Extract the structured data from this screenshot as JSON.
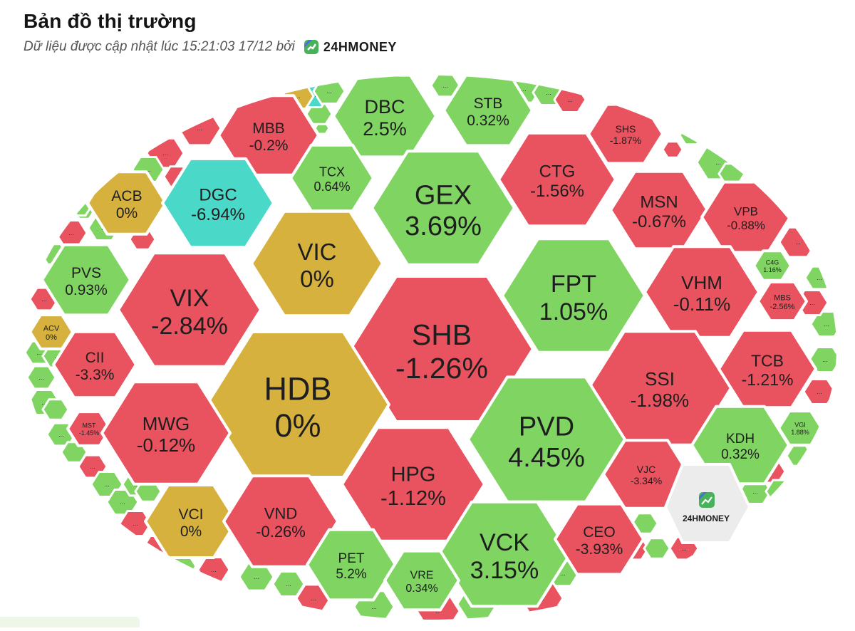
{
  "header": {
    "title": "Bản đồ thị trường",
    "subtitle": "Dữ liệu được cập nhật lúc 15:21:03 17/12 bởi",
    "brand": "24HMONEY"
  },
  "watermark": {
    "brand": "24HMONEY"
  },
  "colors": {
    "up": "#7fd462",
    "down": "#e9525f",
    "flat": "#d6b13e",
    "floor": "#4ad8c8",
    "border": "#ffffff",
    "brand_green": "#47b25a",
    "brand_blue": "#4b6fd8"
  },
  "tiles": [
    {
      "code": "MBB",
      "pct": "-0.2%"
    },
    {
      "code": "DBC",
      "pct": "2.5%"
    },
    {
      "code": "STB",
      "pct": "0.32%"
    },
    {
      "code": "SHS",
      "pct": "-1.87%"
    },
    {
      "code": "ACB",
      "pct": "0%"
    },
    {
      "code": "DGC",
      "pct": "-6.94%"
    },
    {
      "code": "TCX",
      "pct": "0.64%"
    },
    {
      "code": "GEX",
      "pct": "3.69%"
    },
    {
      "code": "CTG",
      "pct": "-1.56%"
    },
    {
      "code": "MSN",
      "pct": "-0.67%"
    },
    {
      "code": "VPB",
      "pct": "-0.88%"
    },
    {
      "code": "VIC",
      "pct": "0%"
    },
    {
      "code": "PVS",
      "pct": "0.93%"
    },
    {
      "code": "VIX",
      "pct": "-2.84%"
    },
    {
      "code": "FPT",
      "pct": "1.05%"
    },
    {
      "code": "VHM",
      "pct": "-0.11%"
    },
    {
      "code": "C4G",
      "pct": "1.16%"
    },
    {
      "code": "MBS",
      "pct": "-2.56%"
    },
    {
      "code": "ACV",
      "pct": "0%"
    },
    {
      "code": "SHB",
      "pct": "-1.26%"
    },
    {
      "code": "CII",
      "pct": "-3.3%"
    },
    {
      "code": "HDB",
      "pct": "0%"
    },
    {
      "code": "SSI",
      "pct": "-1.98%"
    },
    {
      "code": "TCB",
      "pct": "-1.21%"
    },
    {
      "code": "MST",
      "pct": "-1.45%"
    },
    {
      "code": "MWG",
      "pct": "-0.12%"
    },
    {
      "code": "PVD",
      "pct": "4.45%"
    },
    {
      "code": "KDH",
      "pct": "0.32%"
    },
    {
      "code": "VGI",
      "pct": "1.88%"
    },
    {
      "code": "HPG",
      "pct": "-1.12%"
    },
    {
      "code": "VJC",
      "pct": "-3.34%"
    },
    {
      "code": "VCI",
      "pct": "0%"
    },
    {
      "code": "VND",
      "pct": "-0.26%"
    },
    {
      "code": "VCK",
      "pct": "3.15%"
    },
    {
      "code": "CEO",
      "pct": "-3.93%"
    },
    {
      "code": "PET",
      "pct": "5.2%"
    },
    {
      "code": "VRE",
      "pct": "0.34%"
    }
  ],
  "small_tiles": [
    {
      "status": "down"
    },
    {
      "status": "down"
    },
    {
      "status": "down"
    },
    {
      "status": "up"
    },
    {
      "status": "down"
    },
    {
      "status": "up"
    },
    {
      "status": "up"
    },
    {
      "status": "down"
    },
    {
      "status": "up"
    },
    {
      "status": "down"
    },
    {
      "status": "up"
    },
    {
      "status": "down"
    },
    {
      "status": "up"
    },
    {
      "status": "up"
    },
    {
      "status": "up"
    },
    {
      "status": "up"
    },
    {
      "status": "up"
    },
    {
      "status": "up"
    },
    {
      "status": "down"
    },
    {
      "status": "up"
    },
    {
      "status": "up"
    },
    {
      "status": "up"
    },
    {
      "status": "up"
    },
    {
      "status": "down"
    },
    {
      "status": "down"
    },
    {
      "status": "up"
    },
    {
      "status": "down"
    },
    {
      "status": "up"
    },
    {
      "status": "up"
    },
    {
      "status": "down"
    },
    {
      "status": "up"
    },
    {
      "status": "down"
    },
    {
      "status": "up"
    },
    {
      "status": "down"
    },
    {
      "status": "up"
    },
    {
      "status": "up"
    },
    {
      "status": "down"
    },
    {
      "status": "up"
    },
    {
      "status": "down"
    },
    {
      "status": "up"
    },
    {
      "status": "down"
    },
    {
      "status": "up"
    },
    {
      "status": "up"
    },
    {
      "status": "down"
    },
    {
      "status": "up"
    },
    {
      "status": "up"
    },
    {
      "status": "down"
    },
    {
      "status": "up"
    },
    {
      "status": "down"
    },
    {
      "status": "up"
    },
    {
      "status": "up"
    },
    {
      "status": "down"
    },
    {
      "status": "up"
    },
    {
      "status": "up"
    },
    {
      "status": "down"
    },
    {
      "status": "flat"
    },
    {
      "status": "up"
    },
    {
      "status": "up"
    },
    {
      "status": "floor"
    },
    {
      "status": "up"
    },
    {
      "status": "flat"
    },
    {
      "status": "up"
    },
    {
      "status": "up"
    },
    {
      "status": "up"
    },
    {
      "status": "up"
    },
    {
      "status": "up"
    },
    {
      "status": "up"
    },
    {
      "status": "down"
    }
  ],
  "small_tile_label": "..."
}
